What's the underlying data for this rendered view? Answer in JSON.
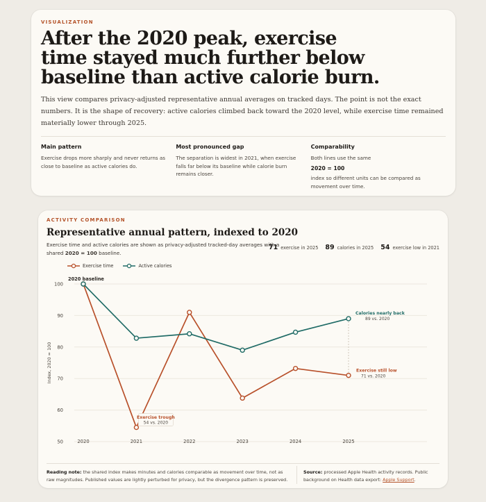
{
  "card1": {
    "eyebrow": "VISUALIZATION",
    "headline": "After the 2020 peak, exercise time stayed much further below baseline than active calorie burn.",
    "intro": "This view compares privacy-adjusted representative annual averages on tracked days. The point is not the exact numbers. It is the shape of recovery: active calories climbed back toward the 2020 level, while exercise time remained materially lower through 2025.",
    "columns": [
      {
        "heading": "Main pattern",
        "text": "Exercise drops more sharply and never returns as close to baseline as active calories do."
      },
      {
        "heading": "Most pronounced gap",
        "text": "The separation is widest in 2021, when exercise falls far below its baseline while calorie burn remains closer."
      },
      {
        "heading": "Comparability",
        "text_pre": "Both lines use the same",
        "text_bold": "2020 = 100",
        "text_post": "index so different units can be compared as movement over time."
      }
    ]
  },
  "card2": {
    "eyebrow": "ACTIVITY COMPARISON",
    "title": "Representative annual pattern, indexed to 2020",
    "subtitle_pre": "Exercise time and active calories are shown as privacy-adjusted tracked-day averages with a shared",
    "subtitle_bold": "2020 = 100",
    "subtitle_post": "baseline.",
    "stats": [
      {
        "value": "71",
        "label": "exercise in 2025"
      },
      {
        "value": "89",
        "label": "calories in 2025"
      },
      {
        "value": "54",
        "label": "exercise low in 2021"
      }
    ],
    "footer_left_bold": "Reading note:",
    "footer_left": "the shared index makes minutes and calories comparable as movement over time, not as raw magnitudes. Published values are lightly perturbed for privacy, but the divergence pattern is preserved.",
    "footer_right_bold": "Source:",
    "footer_right": "processed Apple Health activity records. Public background on Health data export:",
    "footer_link": "Apple Support"
  },
  "colors": {
    "exercise": "#b8502a",
    "calories": "#1f6b66",
    "accent": "#b4532a"
  },
  "chart_data": {
    "type": "line",
    "x": [
      2020,
      2021,
      2022,
      2023,
      2024,
      2025
    ],
    "series": [
      {
        "name": "Exercise time",
        "values": [
          100,
          54.5,
          91,
          63.8,
          73.2,
          71
        ]
      },
      {
        "name": "Active calories",
        "values": [
          100,
          82.8,
          84.2,
          79,
          84.7,
          89
        ]
      }
    ],
    "ylabel": "Index, 2020 = 100",
    "ylim": [
      50,
      100
    ],
    "yticks": [
      50,
      60,
      70,
      80,
      90,
      100
    ],
    "grid": true,
    "legend": "top-left",
    "annotations": {
      "baseline": "2020 baseline",
      "trough_title": "Exercise trough",
      "trough_sub": "54 vs. 2020",
      "cal_title": "Calories nearly back",
      "cal_sub": "89 vs. 2020",
      "ex_title": "Exercise still low",
      "ex_sub": "71 vs. 2020"
    }
  }
}
